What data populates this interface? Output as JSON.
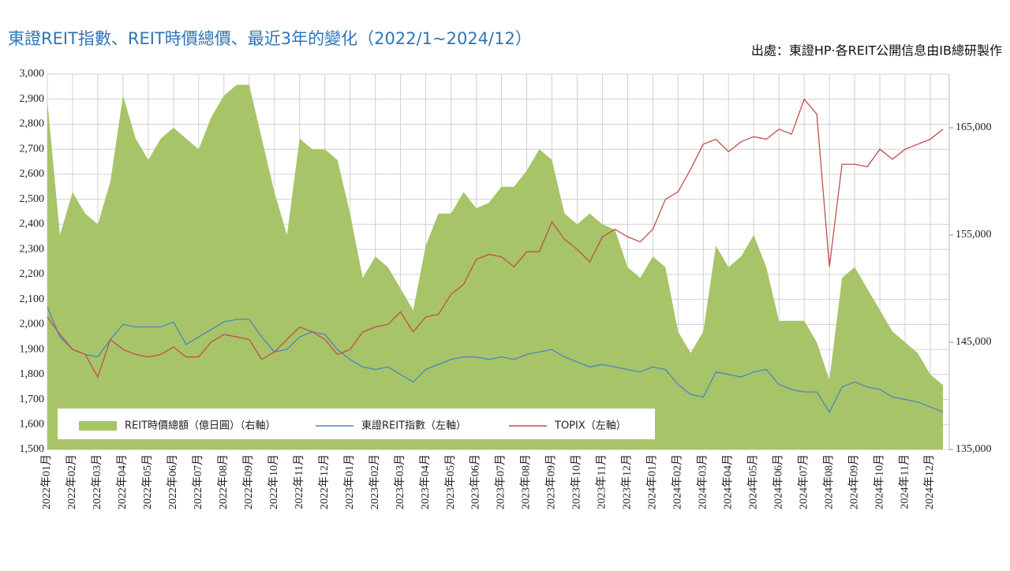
{
  "chart_data": {
    "type": "combo",
    "title": "東證REIT指數、REIT時價總價、最近3年的變化（2022/1~2024/12）",
    "source": "出處：東證HP·各REIT公開信息由IB總研製作",
    "categories": [
      "2022年01月",
      null,
      "2022年02月",
      null,
      "2022年03月",
      null,
      "2022年04月",
      null,
      "2022年05月",
      null,
      "2022年06月",
      null,
      "2022年07月",
      null,
      "2022年08月",
      null,
      "2022年09月",
      null,
      "2022年10月",
      null,
      "2022年11月",
      null,
      "2022年12月",
      null,
      "2023年01月",
      null,
      "2023年02月",
      null,
      "2023年03月",
      null,
      "2023年04月",
      null,
      "2023年05月",
      null,
      "2023年06月",
      null,
      "2023年07月",
      null,
      "2023年08月",
      null,
      "2023年09月",
      null,
      "2023年10月",
      null,
      "2023年11月",
      null,
      "2023年12月",
      null,
      "2024年01月",
      null,
      "2024年02月",
      null,
      "2024年03月",
      null,
      "2024年04月",
      null,
      "2024年05月",
      null,
      "2024年06月",
      null,
      "2024年07月",
      null,
      "2024年08月",
      null,
      "2024年09月",
      null,
      "2024年10月",
      null,
      "2024年11月",
      null,
      "2024年12月",
      null
    ],
    "series": [
      {
        "name": "REIT時價總額（億日圓）（右軸）",
        "kind": "area",
        "axis": "y2",
        "color": "#a7c468",
        "values": [
          167500,
          155000,
          159000,
          157000,
          156000,
          160000,
          168000,
          164000,
          162000,
          164000,
          165000,
          164000,
          163000,
          166000,
          168000,
          169000,
          169000,
          164000,
          159000,
          155000,
          164000,
          163000,
          163000,
          162000,
          157000,
          151000,
          153000,
          152000,
          150000,
          148000,
          154000,
          157000,
          157000,
          159000,
          157500,
          158000,
          159500,
          159500,
          161000,
          163000,
          162000,
          157000,
          156000,
          157000,
          156000,
          155500,
          152000,
          151000,
          153000,
          152000,
          146000,
          144000,
          146000,
          154000,
          152000,
          153000,
          155000,
          152000,
          147000,
          147000,
          147000,
          145000,
          141500,
          151000,
          152000,
          150000,
          148000,
          146000,
          145000,
          144000,
          142000,
          141000
        ]
      },
      {
        "name": "東證REIT指數（左軸）",
        "kind": "line",
        "color": "#4a86c5",
        "values": [
          2070,
          1950,
          1900,
          1880,
          1870,
          1940,
          2000,
          1990,
          1990,
          1990,
          2010,
          1920,
          1950,
          1980,
          2010,
          2020,
          2020,
          1950,
          1890,
          1900,
          1950,
          1970,
          1960,
          1900,
          1860,
          1830,
          1820,
          1830,
          1800,
          1770,
          1820,
          1840,
          1860,
          1870,
          1870,
          1860,
          1870,
          1860,
          1880,
          1890,
          1900,
          1870,
          1850,
          1830,
          1840,
          1830,
          1820,
          1810,
          1830,
          1820,
          1760,
          1720,
          1710,
          1810,
          1800,
          1790,
          1810,
          1820,
          1760,
          1740,
          1730,
          1730,
          1650,
          1750,
          1770,
          1750,
          1740,
          1710,
          1700,
          1690,
          1670,
          1650
        ]
      },
      {
        "name": "TOPIX（左軸）",
        "kind": "line",
        "color": "#c0504d",
        "values": [
          2030,
          1960,
          1900,
          1880,
          1790,
          1940,
          1900,
          1880,
          1870,
          1880,
          1910,
          1870,
          1870,
          1930,
          1960,
          1950,
          1940,
          1860,
          1890,
          1940,
          1990,
          1970,
          1940,
          1880,
          1900,
          1970,
          1990,
          2000,
          2050,
          1970,
          2030,
          2040,
          2120,
          2160,
          2260,
          2280,
          2270,
          2230,
          2290,
          2290,
          2410,
          2340,
          2300,
          2250,
          2350,
          2380,
          2350,
          2330,
          2380,
          2500,
          2530,
          2620,
          2720,
          2740,
          2690,
          2730,
          2750,
          2740,
          2780,
          2760,
          2900,
          2840,
          2230,
          2640,
          2640,
          2630,
          2700,
          2660,
          2700,
          2720,
          2740,
          2780
        ]
      }
    ],
    "ylim": [
      1500,
      3000
    ],
    "yticks": [
      {
        "value": 1500,
        "label": "1,500"
      },
      {
        "value": 1600,
        "label": "1,600"
      },
      {
        "value": 1700,
        "label": "1,700"
      },
      {
        "value": 1800,
        "label": "1,800"
      },
      {
        "value": 1900,
        "label": "1,900"
      },
      {
        "value": 2000,
        "label": "2,000"
      },
      {
        "value": 2100,
        "label": "2,100"
      },
      {
        "value": 2200,
        "label": "2,200"
      },
      {
        "value": 2300,
        "label": "2,300"
      },
      {
        "value": 2400,
        "label": "2,400"
      },
      {
        "value": 2500,
        "label": "2,500"
      },
      {
        "value": 2600,
        "label": "2,600"
      },
      {
        "value": 2700,
        "label": "2,700"
      },
      {
        "value": 2800,
        "label": "2,800"
      },
      {
        "value": 2900,
        "label": "2,900"
      },
      {
        "value": 3000,
        "label": "3,000"
      }
    ],
    "y2lim": [
      135000,
      170000
    ],
    "y2ticks": [
      {
        "value": 135000,
        "label": "135,000"
      },
      {
        "value": 145000,
        "label": "145,000"
      },
      {
        "value": 155000,
        "label": "155,000"
      },
      {
        "value": 165000,
        "label": "165,000"
      }
    ],
    "grid": true
  }
}
